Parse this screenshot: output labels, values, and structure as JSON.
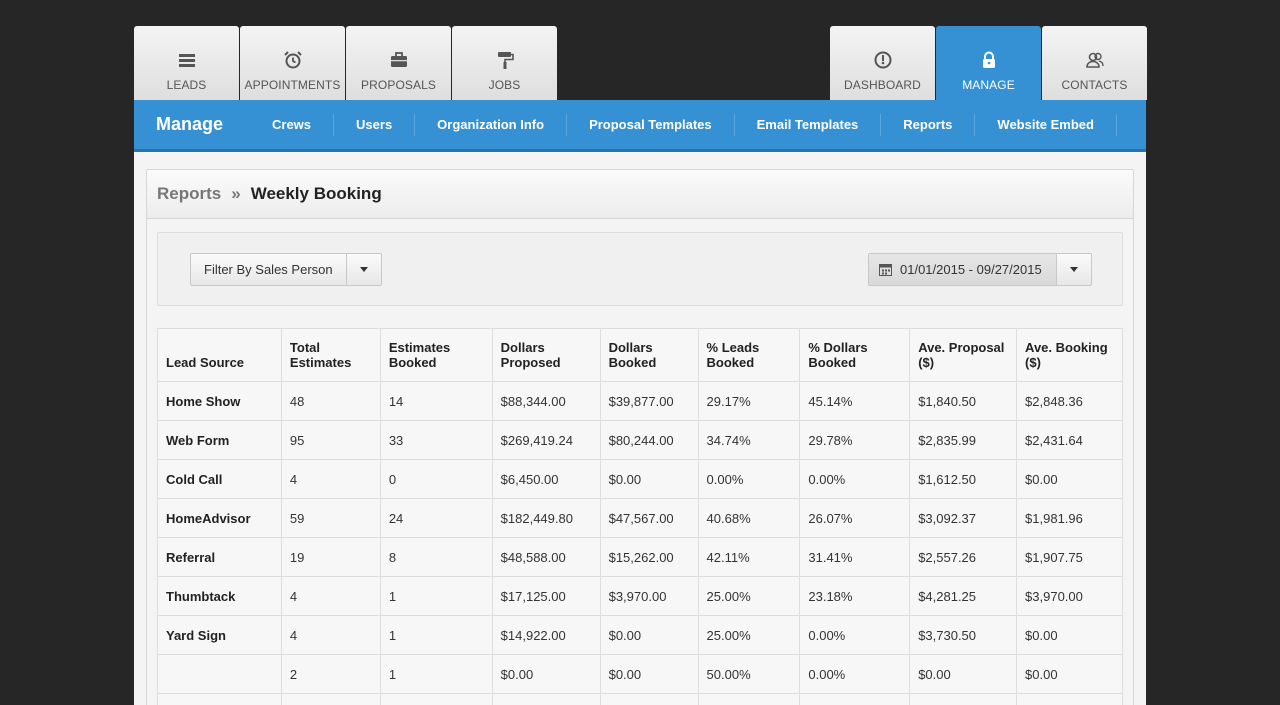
{
  "tabs_left": [
    {
      "label": "LEADS",
      "icon": "list-icon"
    },
    {
      "label": "APPOINTMENTS",
      "icon": "alarm-clock-icon"
    },
    {
      "label": "PROPOSALS",
      "icon": "briefcase-icon"
    },
    {
      "label": "JOBS",
      "icon": "paint-roller-icon"
    }
  ],
  "tabs_right": [
    {
      "label": "DASHBOARD",
      "icon": "gauge-icon"
    },
    {
      "label": "MANAGE",
      "icon": "lock-icon"
    },
    {
      "label": "CONTACTS",
      "icon": "contacts-icon"
    }
  ],
  "subnav": {
    "brand": "Manage",
    "items": [
      "Crews",
      "Users",
      "Organization Info",
      "Proposal Templates",
      "Email Templates",
      "Reports",
      "Website Embed"
    ]
  },
  "breadcrumb": {
    "parent": "Reports",
    "separator": "»",
    "current": "Weekly Booking"
  },
  "filters": {
    "sales_person_label": "Filter By Sales Person",
    "date_range": "01/01/2015 - 09/27/2015"
  },
  "table": {
    "headers": [
      [
        "Lead Source",
        ""
      ],
      [
        "Total",
        "Estimates"
      ],
      [
        "Estimates",
        "Booked"
      ],
      [
        "Dollars",
        "Proposed"
      ],
      [
        "Dollars",
        "Booked"
      ],
      [
        "% Leads",
        "Booked"
      ],
      [
        "% Dollars",
        "Booked"
      ],
      [
        "Ave. Proposal",
        "($)"
      ],
      [
        "Ave. Booking",
        "($)"
      ]
    ],
    "rows": [
      [
        "Home Show",
        "48",
        "14",
        "$88,344.00",
        "$39,877.00",
        "29.17%",
        "45.14%",
        "$1,840.50",
        "$2,848.36"
      ],
      [
        "Web Form",
        "95",
        "33",
        "$269,419.24",
        "$80,244.00",
        "34.74%",
        "29.78%",
        "$2,835.99",
        "$2,431.64"
      ],
      [
        "Cold Call",
        "4",
        "0",
        "$6,450.00",
        "$0.00",
        "0.00%",
        "0.00%",
        "$1,612.50",
        "$0.00"
      ],
      [
        "HomeAdvisor",
        "59",
        "24",
        "$182,449.80",
        "$47,567.00",
        "40.68%",
        "26.07%",
        "$3,092.37",
        "$1,981.96"
      ],
      [
        "Referral",
        "19",
        "8",
        "$48,588.00",
        "$15,262.00",
        "42.11%",
        "31.41%",
        "$2,557.26",
        "$1,907.75"
      ],
      [
        "Thumbtack",
        "4",
        "1",
        "$17,125.00",
        "$3,970.00",
        "25.00%",
        "23.18%",
        "$4,281.25",
        "$3,970.00"
      ],
      [
        "Yard Sign",
        "4",
        "1",
        "$14,922.00",
        "$0.00",
        "25.00%",
        "0.00%",
        "$3,730.50",
        "$0.00"
      ],
      [
        "",
        "2",
        "1",
        "$0.00",
        "$0.00",
        "50.00%",
        "0.00%",
        "$0.00",
        "$0.00"
      ],
      [
        "",
        "",
        "",
        "",
        "",
        "",
        "",
        "",
        ""
      ]
    ]
  },
  "colors": {
    "accent": "#3691d4",
    "background": "#262626"
  }
}
